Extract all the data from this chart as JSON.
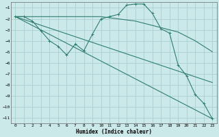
{
  "xlabel": "Humidex (Indice chaleur)",
  "background_color": "#cce9e9",
  "grid_color": "#aacfcf",
  "line_color": "#2e7d6e",
  "xlim": [
    -0.5,
    23.5
  ],
  "ylim": [
    -11.5,
    -0.5
  ],
  "yticks": [
    -1,
    -2,
    -3,
    -4,
    -5,
    -6,
    -7,
    -8,
    -9,
    -10,
    -11
  ],
  "xticks": [
    0,
    1,
    2,
    3,
    4,
    5,
    6,
    7,
    8,
    9,
    10,
    11,
    12,
    13,
    14,
    15,
    16,
    17,
    18,
    19,
    20,
    21,
    22,
    23
  ],
  "line_main": {
    "x": [
      0,
      1,
      2,
      3,
      4,
      5,
      6,
      7,
      8,
      9,
      10,
      11,
      12,
      13,
      14,
      15,
      16,
      17,
      18,
      19,
      20,
      21,
      22,
      23
    ],
    "y": [
      -1.8,
      -1.8,
      -2.2,
      -3.1,
      -4.0,
      -4.5,
      -5.3,
      -4.3,
      -4.9,
      -3.4,
      -2.0,
      -1.8,
      -1.6,
      -0.75,
      -0.65,
      -0.65,
      -1.5,
      -2.9,
      -3.3,
      -6.2,
      -7.2,
      -8.9,
      -9.7,
      -11.1
    ]
  },
  "line_flat": {
    "x": [
      0,
      1,
      2,
      3,
      4,
      5,
      6,
      7,
      8,
      9,
      10,
      11,
      12,
      13,
      14,
      15,
      16,
      17,
      18,
      19,
      20,
      21,
      22,
      23
    ],
    "y": [
      -1.8,
      -1.8,
      -1.8,
      -1.8,
      -1.8,
      -1.8,
      -1.8,
      -1.8,
      -1.8,
      -1.8,
      -1.8,
      -1.9,
      -2.0,
      -2.1,
      -2.2,
      -2.4,
      -2.6,
      -2.8,
      -3.0,
      -3.2,
      -3.6,
      -4.0,
      -4.5,
      -5.0
    ]
  },
  "line_diag1": {
    "x": [
      0,
      23
    ],
    "y": [
      -1.8,
      -7.8
    ]
  },
  "line_diag2": {
    "x": [
      0,
      23
    ],
    "y": [
      -1.8,
      -11.1
    ]
  }
}
